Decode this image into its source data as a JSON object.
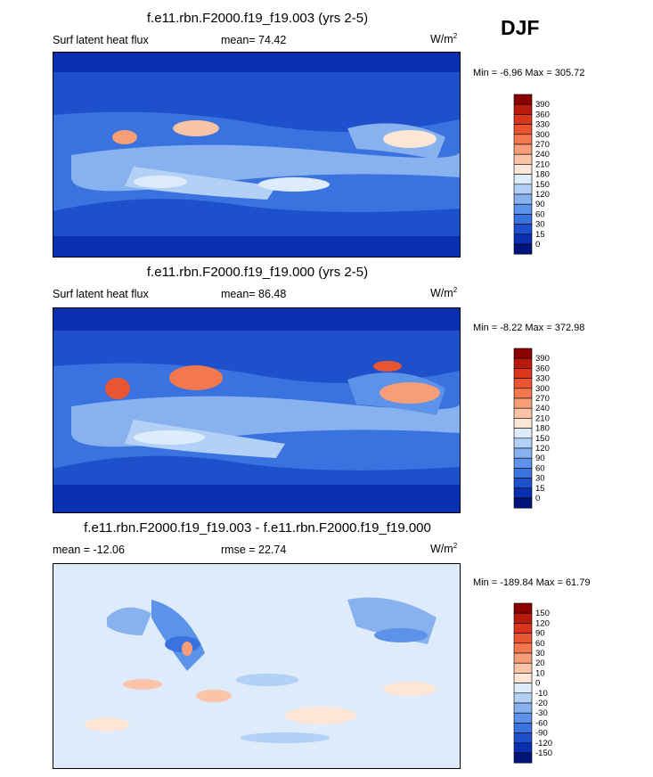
{
  "season": "DJF",
  "panels": [
    {
      "title": "f.e11.rbn.F2000.f19_f19.003 (yrs 2-5)",
      "left_label": "Surf latent heat flux",
      "center_label": "mean=  74.42",
      "units": "W/m",
      "units_exp": "2",
      "minmax": "Min =  -6.96 Max = 305.72",
      "palette": "abs"
    },
    {
      "title": "f.e11.rbn.F2000.f19_f19.000 (yrs 2-5)",
      "left_label": "Surf latent heat flux",
      "center_label": "mean=  86.48",
      "units": "W/m",
      "units_exp": "2",
      "minmax": "Min =  -8.22 Max = 372.98",
      "palette": "abs"
    },
    {
      "title": "f.e11.rbn.F2000.f19_f19.003 - f.e11.rbn.F2000.f19_f19.000",
      "left_label": "mean = -12.06",
      "center_label": "rmse =  22.74",
      "units": "W/m",
      "units_exp": "2",
      "minmax": "Min = -189.84 Max =  61.79",
      "palette": "diff"
    }
  ],
  "chart_data": [
    {
      "type": "heatmap",
      "title": "f.e11.rbn.F2000.f19_f19.003 (yrs 2-5)",
      "variable": "Surf latent heat flux",
      "units": "W/m^2",
      "mean": 74.42,
      "min": -6.96,
      "max": 305.72,
      "colorbar_levels": [
        390,
        360,
        330,
        300,
        270,
        240,
        210,
        180,
        150,
        120,
        90,
        60,
        30,
        15,
        0
      ],
      "colors": [
        "#8b0000",
        "#b81a0e",
        "#d9361c",
        "#ea5531",
        "#f3784f",
        "#f79e79",
        "#fbc4a8",
        "#fde6d6",
        "#deebfb",
        "#b3d0f6",
        "#87b2ef",
        "#5c92e8",
        "#3a72e0",
        "#1e50cc",
        "#0a2fb0",
        "#00157a"
      ]
    },
    {
      "type": "heatmap",
      "title": "f.e11.rbn.F2000.f19_f19.000 (yrs 2-5)",
      "variable": "Surf latent heat flux",
      "units": "W/m^2",
      "mean": 86.48,
      "min": -8.22,
      "max": 372.98,
      "colorbar_levels": [
        390,
        360,
        330,
        300,
        270,
        240,
        210,
        180,
        150,
        120,
        90,
        60,
        30,
        15,
        0
      ],
      "colors": [
        "#8b0000",
        "#b81a0e",
        "#d9361c",
        "#ea5531",
        "#f3784f",
        "#f79e79",
        "#fbc4a8",
        "#fde6d6",
        "#deebfb",
        "#b3d0f6",
        "#87b2ef",
        "#5c92e8",
        "#3a72e0",
        "#1e50cc",
        "#0a2fb0",
        "#00157a"
      ]
    },
    {
      "type": "heatmap",
      "title": "f.e11.rbn.F2000.f19_f19.003 - f.e11.rbn.F2000.f19_f19.000",
      "units": "W/m^2",
      "mean": -12.06,
      "rmse": 22.74,
      "min": -189.84,
      "max": 61.79,
      "colorbar_levels": [
        150,
        120,
        90,
        60,
        30,
        20,
        10,
        0,
        -10,
        -20,
        -30,
        -60,
        -90,
        -120,
        -150
      ],
      "colors": [
        "#8b0000",
        "#b81a0e",
        "#d9361c",
        "#ea5531",
        "#f3784f",
        "#f79e79",
        "#fbc4a8",
        "#fde6d6",
        "#deebfb",
        "#b3d0f6",
        "#87b2ef",
        "#5c92e8",
        "#3a72e0",
        "#1e50cc",
        "#0a2fb0",
        "#00157a"
      ]
    }
  ]
}
